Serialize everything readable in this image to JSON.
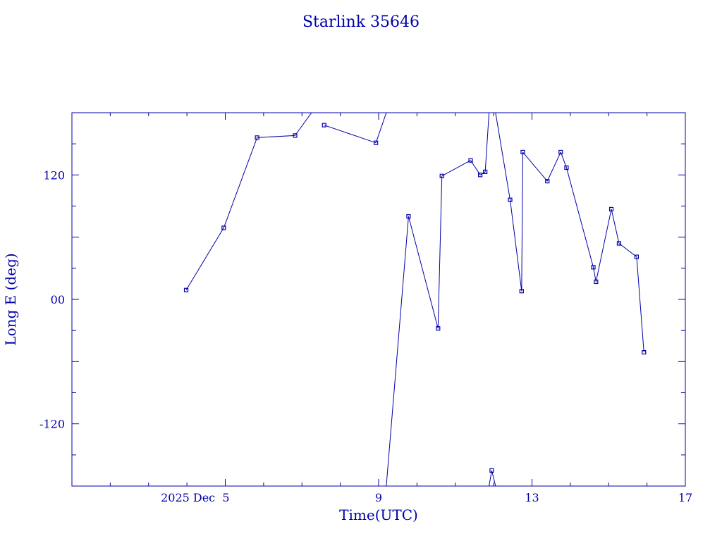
{
  "chart_data": {
    "type": "line",
    "title": "Starlink 35646",
    "xlabel": "Time(UTC)",
    "ylabel": "Long E (deg)",
    "x_unit": "days (UTC, December 2025)",
    "xlim": [
      1.0,
      17.0
    ],
    "ylim": [
      -180,
      180
    ],
    "x_ticks": [
      {
        "value": 5,
        "label": "2025 Dec  5"
      },
      {
        "value": 9,
        "label": "9"
      },
      {
        "value": 13,
        "label": "13"
      },
      {
        "value": 17,
        "label": "17"
      }
    ],
    "y_ticks": [
      {
        "value": 120,
        "label": "120"
      },
      {
        "value": 0,
        "label": "00"
      },
      {
        "value": -120,
        "label": "-120"
      }
    ],
    "color": "#0000aa",
    "grid": false,
    "series": [
      {
        "points": [
          [
            3.98,
            9
          ],
          [
            4.96,
            69
          ],
          [
            5.83,
            156
          ],
          [
            6.82,
            158
          ],
          [
            7.25,
            180
          ],
          [
            7.25,
            -180
          ],
          [
            7.58,
            168
          ],
          [
            8.93,
            151
          ],
          [
            9.2,
            180
          ],
          [
            9.2,
            -180
          ],
          [
            9.78,
            80
          ],
          [
            10.55,
            -28
          ],
          [
            10.65,
            119
          ],
          [
            11.4,
            134
          ],
          [
            11.65,
            120
          ],
          [
            11.78,
            123
          ],
          [
            11.88,
            180
          ],
          [
            11.88,
            -180
          ],
          [
            11.95,
            -165
          ],
          [
            12.05,
            -180
          ],
          [
            12.05,
            180
          ],
          [
            12.43,
            96
          ],
          [
            12.73,
            8
          ],
          [
            12.76,
            142
          ],
          [
            13.4,
            114
          ],
          [
            13.75,
            142
          ],
          [
            13.9,
            127
          ],
          [
            14.6,
            31
          ],
          [
            14.67,
            17
          ],
          [
            15.07,
            87
          ],
          [
            15.27,
            54
          ],
          [
            15.73,
            41
          ],
          [
            15.92,
            -51
          ]
        ]
      }
    ]
  }
}
